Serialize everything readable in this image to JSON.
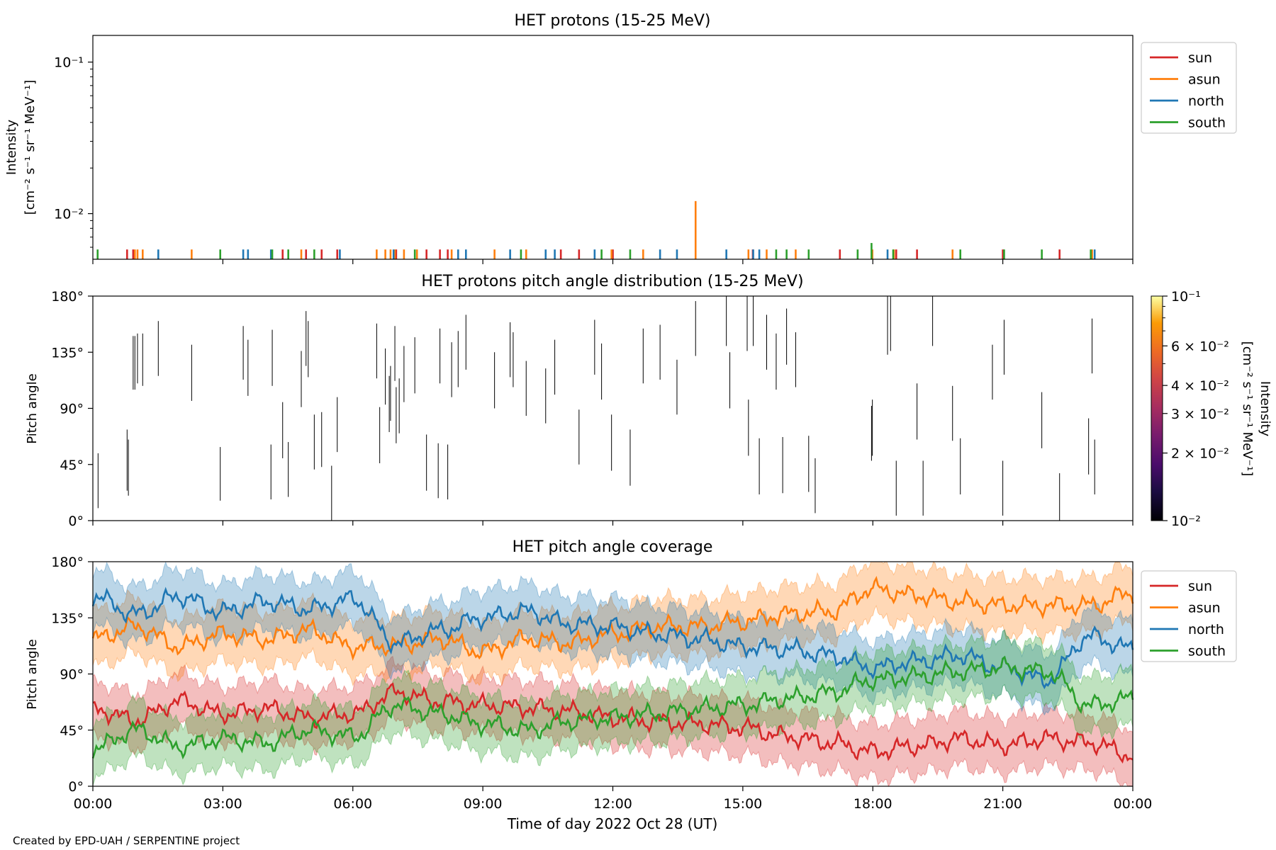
{
  "footer": "Created by EPD-UAH / SERPENTINE project",
  "colors": {
    "sun": "#d62728",
    "asun": "#ff7f0e",
    "north": "#1f77b4",
    "south": "#2ca02c",
    "axes": "#000000"
  },
  "chart_data": [
    {
      "type": "bar",
      "title": "HET protons (15-25 MeV)",
      "ylabel_lines": [
        "Intensity",
        "[cm⁻² s⁻¹ sr⁻¹ MeV⁻¹]"
      ],
      "yscale": "log",
      "ylim": [
        0.005,
        0.15
      ],
      "yticks": [
        {
          "value": 0.1,
          "label": "10⁻¹"
        },
        {
          "value": 0.01,
          "label": "10⁻²"
        }
      ],
      "xlim_hours": [
        0,
        24
      ],
      "legend": {
        "position": "right",
        "entries": [
          "sun",
          "asun",
          "north",
          "south"
        ]
      },
      "series": [
        {
          "name": "sun",
          "color": "#d62728",
          "x_hours": [
            0.79,
            0.93,
            4.38,
            4.92,
            5.28,
            5.64,
            7.0,
            7.7,
            8.01,
            8.19,
            10.8,
            11.22,
            12.0,
            15.23,
            17.24,
            18.54,
            19.02,
            21.0,
            22.31
          ],
          "values": [
            0.0058,
            0.0058,
            0.0058,
            0.0058,
            0.0058,
            0.0058,
            0.0058,
            0.0058,
            0.0058,
            0.0058,
            0.0058,
            0.0058,
            0.0058,
            0.0058,
            0.0058,
            0.0058,
            0.0058,
            0.0058,
            0.0058
          ]
        },
        {
          "name": "asun",
          "color": "#ff7f0e",
          "x_hours": [
            0.97,
            1.03,
            1.15,
            2.28,
            4.81,
            6.55,
            6.75,
            6.87,
            6.97,
            7.18,
            7.48,
            8.28,
            9.27,
            10.0,
            11.97,
            12.7,
            13.91,
            15.13,
            15.55,
            16.22,
            17.99,
            18.49,
            19.84,
            23.06
          ],
          "values": [
            0.0058,
            0.0058,
            0.0058,
            0.0058,
            0.0058,
            0.0058,
            0.0058,
            0.0058,
            0.0058,
            0.0058,
            0.0058,
            0.0058,
            0.0058,
            0.0058,
            0.0058,
            0.0058,
            0.0121,
            0.0058,
            0.0058,
            0.0058,
            0.0058,
            0.0058,
            0.0058,
            0.0058
          ]
        },
        {
          "name": "north",
          "color": "#1f77b4",
          "x_hours": [
            1.51,
            3.47,
            3.58,
            4.11,
            5.7,
            6.94,
            8.43,
            8.61,
            9.63,
            10.45,
            10.66,
            11.58,
            13.09,
            13.48,
            14.62,
            15.24,
            15.38,
            18.34,
            23.12
          ],
          "values": [
            0.0058,
            0.0058,
            0.0058,
            0.0058,
            0.0058,
            0.0058,
            0.0058,
            0.0058,
            0.0058,
            0.0058,
            0.0058,
            0.0058,
            0.0058,
            0.0058,
            0.0058,
            0.0058,
            0.0058,
            0.0058,
            0.0058
          ]
        },
        {
          "name": "south",
          "color": "#2ca02c",
          "x_hours": [
            0.11,
            2.94,
            4.14,
            4.51,
            5.11,
            7.43,
            9.88,
            11.74,
            12.4,
            15.77,
            16.01,
            16.52,
            17.65,
            17.97,
            18.47,
            20.02,
            21.03,
            21.9,
            23.03
          ],
          "values": [
            0.0058,
            0.0058,
            0.0058,
            0.0058,
            0.0058,
            0.0058,
            0.0058,
            0.0058,
            0.0058,
            0.0058,
            0.0058,
            0.0058,
            0.0058,
            0.0064,
            0.0058,
            0.0058,
            0.0058,
            0.0058,
            0.0058
          ]
        }
      ]
    },
    {
      "type": "heatmap",
      "title": "HET protons pitch angle distribution (15-25 MeV)",
      "ylabel": "Pitch angle",
      "ylim": [
        0,
        180
      ],
      "yticks": [
        {
          "value": 0,
          "label": "0°"
        },
        {
          "value": 45,
          "label": "45°"
        },
        {
          "value": 90,
          "label": "90°"
        },
        {
          "value": 135,
          "label": "135°"
        },
        {
          "value": 180,
          "label": "180°"
        }
      ],
      "xlim_hours": [
        0,
        24
      ],
      "colorbar": {
        "label_lines": [
          "Intensity",
          "[cm⁻² s⁻¹ sr⁻¹ MeV⁻¹]"
        ],
        "scale": "log",
        "range": [
          0.01,
          0.1
        ],
        "colormap": "inferno",
        "ticks": [
          {
            "value": 0.1,
            "label": "10⁻¹"
          },
          {
            "value": 0.06,
            "label": "6 × 10⁻²"
          },
          {
            "value": 0.04,
            "label": "4 × 10⁻²"
          },
          {
            "value": 0.03,
            "label": "3 × 10⁻²"
          },
          {
            "value": 0.02,
            "label": "2 × 10⁻²"
          },
          {
            "value": 0.01,
            "label": "10⁻²"
          }
        ]
      },
      "segments": [
        [
          0.12,
          10,
          54
        ],
        [
          0.79,
          24,
          73
        ],
        [
          0.82,
          20,
          65
        ],
        [
          0.93,
          105,
          148
        ],
        [
          0.97,
          105,
          148
        ],
        [
          1.03,
          110,
          150
        ],
        [
          1.15,
          108,
          150
        ],
        [
          1.51,
          116,
          160
        ],
        [
          2.28,
          96,
          141
        ],
        [
          2.94,
          16,
          59
        ],
        [
          3.47,
          113,
          156
        ],
        [
          3.58,
          100,
          145
        ],
        [
          4.11,
          17,
          61
        ],
        [
          4.14,
          108,
          153
        ],
        [
          4.38,
          50,
          95
        ],
        [
          4.51,
          19,
          63
        ],
        [
          4.81,
          91,
          136
        ],
        [
          4.92,
          124,
          168
        ],
        [
          4.97,
          115,
          160
        ],
        [
          5.11,
          41,
          85
        ],
        [
          5.28,
          43,
          87
        ],
        [
          5.51,
          0,
          44
        ],
        [
          5.64,
          55,
          99
        ],
        [
          6.55,
          114,
          158
        ],
        [
          6.62,
          46,
          91
        ],
        [
          6.75,
          93,
          138
        ],
        [
          6.84,
          71,
          116
        ],
        [
          6.87,
          80,
          124
        ],
        [
          6.97,
          112,
          156
        ],
        [
          7.0,
          62,
          107
        ],
        [
          7.07,
          70,
          114
        ],
        [
          7.18,
          95,
          140
        ],
        [
          7.43,
          102,
          147
        ],
        [
          7.7,
          24,
          69
        ],
        [
          7.97,
          18,
          62
        ],
        [
          8.01,
          110,
          154
        ],
        [
          8.19,
          17,
          61
        ],
        [
          8.28,
          99,
          143
        ],
        [
          8.43,
          107,
          152
        ],
        [
          8.61,
          121,
          165
        ],
        [
          9.27,
          90,
          135
        ],
        [
          9.63,
          115,
          159
        ],
        [
          9.7,
          107,
          151
        ],
        [
          10.0,
          84,
          128
        ],
        [
          10.45,
          78,
          122
        ],
        [
          10.66,
          101,
          145
        ],
        [
          11.22,
          45,
          89
        ],
        [
          11.58,
          117,
          161
        ],
        [
          11.74,
          97,
          142
        ],
        [
          11.97,
          40,
          85
        ],
        [
          12.4,
          28,
          73
        ],
        [
          12.7,
          110,
          154
        ],
        [
          13.09,
          113,
          157
        ],
        [
          13.48,
          85,
          129
        ],
        [
          13.91,
          132,
          176
        ],
        [
          14.62,
          140,
          185
        ],
        [
          14.7,
          90,
          135
        ],
        [
          15.1,
          136,
          180
        ],
        [
          15.13,
          52,
          97
        ],
        [
          15.24,
          140,
          180
        ],
        [
          15.38,
          21,
          66
        ],
        [
          15.55,
          121,
          165
        ],
        [
          15.77,
          105,
          150
        ],
        [
          15.92,
          22,
          67
        ],
        [
          16.01,
          125,
          170
        ],
        [
          16.22,
          107,
          151
        ],
        [
          16.52,
          23,
          68
        ],
        [
          16.67,
          6,
          50
        ],
        [
          17.97,
          48,
          92
        ],
        [
          17.99,
          52,
          97
        ],
        [
          18.34,
          133,
          180
        ],
        [
          18.41,
          136,
          180
        ],
        [
          18.54,
          4,
          48
        ],
        [
          19.02,
          65,
          110
        ],
        [
          19.16,
          4,
          48
        ],
        [
          19.38,
          140,
          184
        ],
        [
          19.84,
          64,
          108
        ],
        [
          20.02,
          21,
          66
        ],
        [
          20.76,
          97,
          141
        ],
        [
          21.0,
          4,
          48
        ],
        [
          21.03,
          117,
          161
        ],
        [
          21.9,
          58,
          103
        ],
        [
          22.31,
          0,
          38
        ],
        [
          22.98,
          37,
          82
        ],
        [
          23.06,
          118,
          162
        ],
        [
          23.12,
          21,
          65
        ]
      ]
    },
    {
      "type": "area",
      "title": "HET pitch angle coverage",
      "xlabel": "Time of day 2022 Oct 28 (UT)",
      "ylabel": "Pitch angle",
      "ylim": [
        0,
        180
      ],
      "yticks": [
        {
          "value": 0,
          "label": "0°"
        },
        {
          "value": 45,
          "label": "45°"
        },
        {
          "value": 90,
          "label": "90°"
        },
        {
          "value": 135,
          "label": "135°"
        },
        {
          "value": 180,
          "label": "180°"
        }
      ],
      "xlim_hours": [
        0,
        24
      ],
      "xticks": [
        {
          "value": 0,
          "label": "00:00"
        },
        {
          "value": 3,
          "label": "03:00"
        },
        {
          "value": 6,
          "label": "06:00"
        },
        {
          "value": 9,
          "label": "09:00"
        },
        {
          "value": 12,
          "label": "12:00"
        },
        {
          "value": 15,
          "label": "15:00"
        },
        {
          "value": 18,
          "label": "18:00"
        },
        {
          "value": 21,
          "label": "21:00"
        },
        {
          "value": 24,
          "label": "00:00"
        }
      ],
      "legend": {
        "position": "right",
        "entries": [
          "sun",
          "asun",
          "north",
          "south"
        ]
      },
      "band_half_width_deg": 22,
      "series": [
        {
          "name": "sun",
          "color": "#d62728",
          "x_hours": [
            0,
            1,
            2,
            3,
            4,
            5,
            6,
            7,
            8,
            9,
            10,
            11,
            12,
            13,
            14,
            15,
            16,
            17,
            18,
            19,
            20,
            21,
            22,
            23,
            24
          ],
          "values": [
            62,
            53,
            68,
            58,
            62,
            55,
            58,
            75,
            68,
            65,
            63,
            60,
            55,
            52,
            50,
            47,
            40,
            35,
            28,
            32,
            38,
            33,
            38,
            35,
            25
          ]
        },
        {
          "name": "asun",
          "color": "#ff7f0e",
          "x_hours": [
            0,
            1,
            2,
            3,
            4,
            5,
            6,
            7,
            8,
            9,
            10,
            11,
            12,
            13,
            14,
            15,
            16,
            17,
            18,
            19,
            20,
            21,
            22,
            23,
            24
          ],
          "values": [
            118,
            128,
            112,
            122,
            118,
            125,
            112,
            113,
            118,
            108,
            118,
            115,
            122,
            128,
            128,
            132,
            138,
            140,
            158,
            153,
            148,
            145,
            145,
            145,
            155
          ]
        },
        {
          "name": "north",
          "color": "#1f77b4",
          "x_hours": [
            0,
            1,
            2,
            3,
            4,
            5,
            6,
            7,
            8,
            9,
            10,
            11,
            12,
            13,
            14,
            15,
            16,
            17,
            18,
            19,
            20,
            21,
            22,
            23,
            24
          ],
          "values": [
            152,
            138,
            152,
            140,
            148,
            142,
            150,
            115,
            125,
            135,
            140,
            130,
            128,
            122,
            118,
            112,
            110,
            105,
            95,
            100,
            105,
            95,
            85,
            120,
            110
          ]
        },
        {
          "name": "south",
          "color": "#2ca02c",
          "x_hours": [
            0,
            1,
            2,
            3,
            4,
            5,
            6,
            7,
            8,
            9,
            10,
            11,
            12,
            13,
            14,
            15,
            16,
            17,
            18,
            19,
            20,
            21,
            22,
            23,
            24
          ],
          "values": [
            30,
            45,
            32,
            38,
            35,
            45,
            40,
            65,
            58,
            50,
            45,
            52,
            55,
            58,
            62,
            65,
            70,
            75,
            85,
            88,
            92,
            95,
            92,
            65,
            70
          ]
        }
      ]
    }
  ]
}
